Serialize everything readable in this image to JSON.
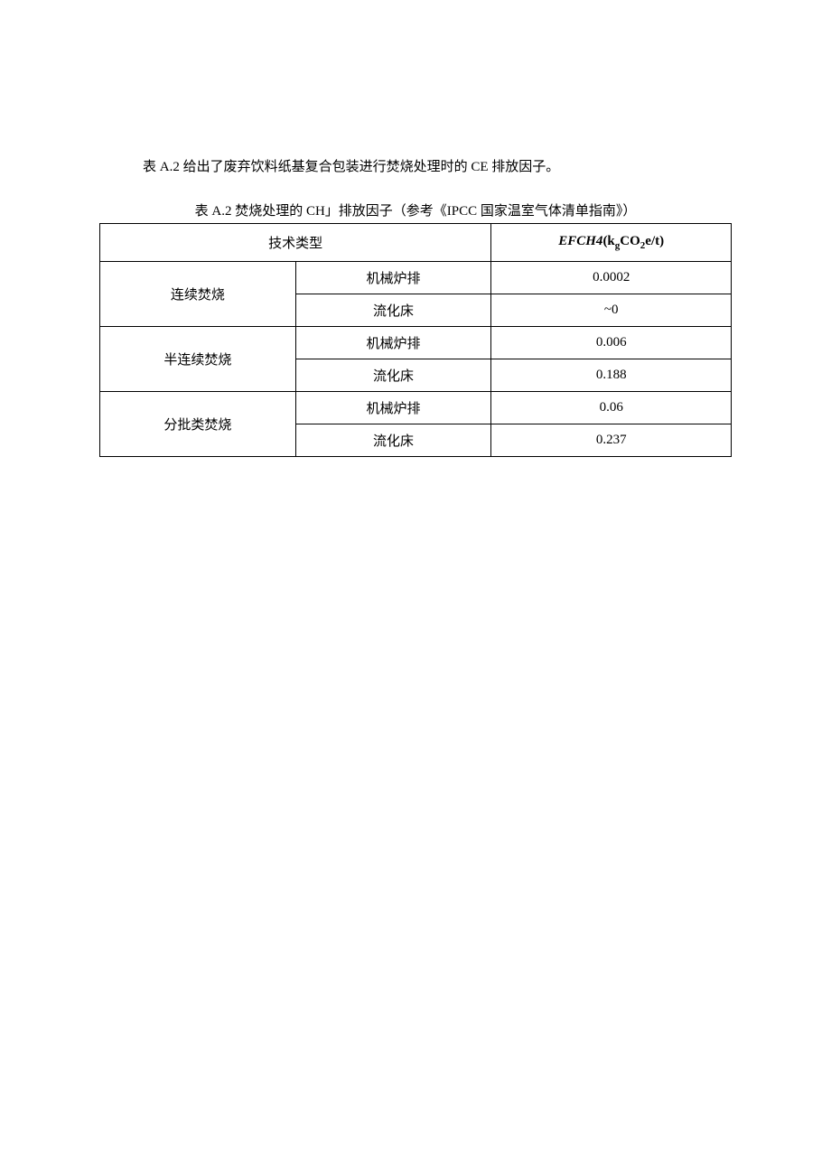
{
  "intro": "表 A.2 给出了废弃饮料纸基复合包装进行焚烧处理时的 CE 排放因子。",
  "caption": "表 A.2 焚烧处理的 CH」排放因子（参考《IPCC 国家温室气体清单指南》）",
  "table": {
    "header": {
      "tech_type": "技术类型",
      "value_label_prefix": "EFCH4",
      "value_label_open": "(k",
      "value_label_sub1": "g",
      "value_label_mid": "CO",
      "value_label_sub2": "2",
      "value_label_suffix": "e/t)"
    },
    "rows": [
      {
        "tech_name": "连续焚烧",
        "subtype": "机械炉排",
        "value": "0.0002"
      },
      {
        "subtype": "流化床",
        "value": "~0"
      },
      {
        "tech_name": "半连续焚烧",
        "subtype": "机械炉排",
        "value": "0.006"
      },
      {
        "subtype": "流化床",
        "value": "0.188"
      },
      {
        "tech_name": "分批类焚烧",
        "subtype": "机械炉排",
        "value": "0.06"
      },
      {
        "subtype": "流化床",
        "value": "0.237"
      }
    ]
  },
  "colors": {
    "background": "#ffffff",
    "text": "#000000",
    "border": "#000000"
  }
}
